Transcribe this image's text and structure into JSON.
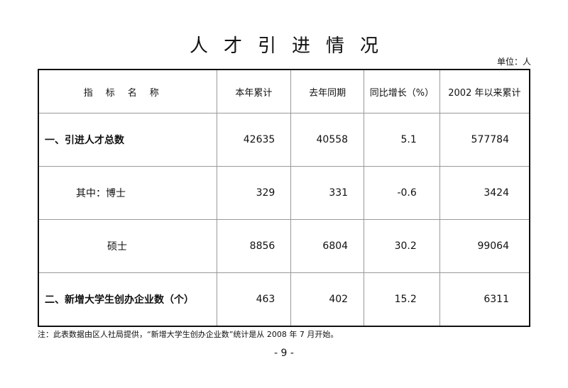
{
  "title": "人才引进情况",
  "unit": "单位：人",
  "table": {
    "headers": [
      "指标名称",
      "本年累计",
      "去年同期",
      "同比增长（%）",
      "2002 年以来累计"
    ],
    "rows": [
      {
        "name": "一、引进人才总数",
        "values": [
          "42635",
          "40558",
          "5.1",
          "577784"
        ]
      },
      {
        "name": "其中：博士",
        "values": [
          "329",
          "331",
          "-0.6",
          "3424"
        ]
      },
      {
        "name": "硕士",
        "values": [
          "8856",
          "6804",
          "30.2",
          "99064"
        ]
      },
      {
        "name": "二、新增大学生创办企业数（个）",
        "values": [
          "463",
          "402",
          "15.2",
          "6311"
        ]
      }
    ]
  },
  "note": "注：此表数据由区人社局提供，“新增大学生创办企业数”统计是从 2008 年 7 月开始。",
  "page_number": "- 9 -"
}
